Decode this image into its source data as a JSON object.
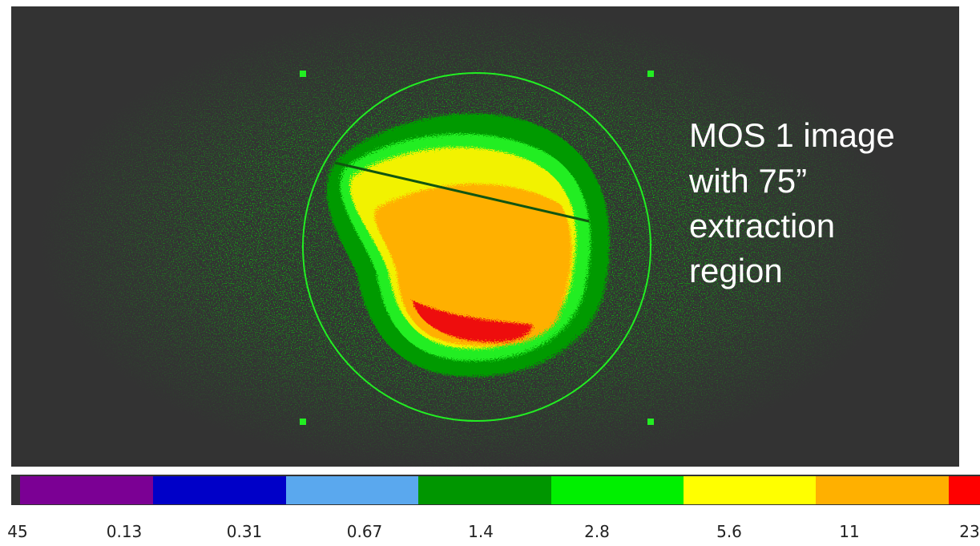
{
  "annotation": {
    "lines": [
      "MOS 1 image",
      "with 75”",
      "extraction",
      "region"
    ]
  },
  "colorbar": {
    "labels": [
      "45",
      "0.13",
      "0.31",
      "0.67",
      "1.4",
      "2.8",
      "5.6",
      "11",
      "23"
    ]
  }
}
